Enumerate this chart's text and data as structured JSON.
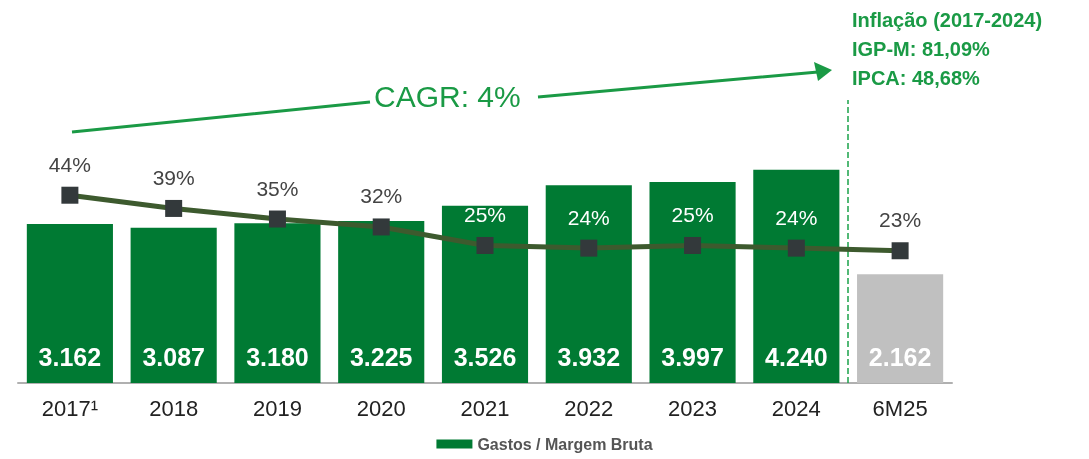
{
  "chart_data": {
    "type": "bar",
    "categories": [
      "2017¹",
      "2018",
      "2019",
      "2020",
      "2021",
      "2022",
      "2023",
      "2024",
      "6M25"
    ],
    "series": [
      {
        "name": "Gastos / Margem Bruta",
        "colors": [
          "#007a33",
          "#007a33",
          "#007a33",
          "#007a33",
          "#007a33",
          "#007a33",
          "#007a33",
          "#007a33",
          "#c0c0c0"
        ],
        "values": [
          3162,
          3087,
          3180,
          3225,
          3526,
          3932,
          3997,
          4240,
          2162
        ],
        "value_labels": [
          "3.162",
          "3.087",
          "3.180",
          "3.225",
          "3.526",
          "3.932",
          "3.997",
          "4.240",
          "2.162"
        ]
      },
      {
        "type": "line",
        "axis": "y2",
        "color": "#3d5a2e",
        "marker": "square",
        "values": [
          44,
          39,
          35,
          32,
          25,
          24,
          25,
          24,
          23
        ],
        "value_labels": [
          "44%",
          "39%",
          "35%",
          "32%",
          "25%",
          "24%",
          "25%",
          "24%",
          "23%"
        ]
      }
    ],
    "ylim": [
      0,
      5630
    ],
    "y2lim": [
      -27,
      80
    ],
    "ref_lines": [
      {
        "axis": "x",
        "value": "6M25",
        "color": "#1aa34a",
        "line_style": "dashed"
      }
    ],
    "annotations": [
      "CAGR: 4%",
      "Inflação (2017-2024)",
      "IGP-M: 81,09%",
      "IPCA: 48,68%"
    ],
    "legend": "bottom"
  }
}
